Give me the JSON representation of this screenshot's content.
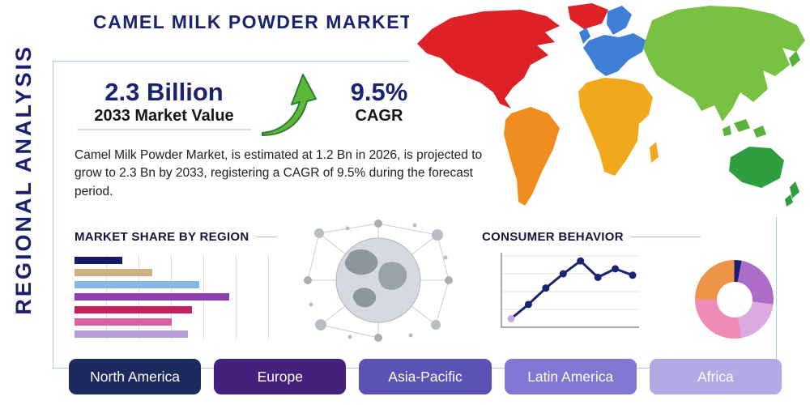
{
  "page": {
    "title": "CAMEL MILK POWDER MARKET",
    "side_label": "REGIONAL ANALYSIS"
  },
  "stats": {
    "market_value": "2.3 Billion",
    "market_value_caption": "2033 Market Value",
    "cagr_value": "9.5%",
    "cagr_caption": "CAGR"
  },
  "description": "Camel Milk Powder Market, is estimated at 1.2 Bn in 2026, is projected to grow to 2.3 Bn by 2033, registering a CAGR of 9.5% during the forecast period.",
  "sections": {
    "market_share": "MARKET SHARE BY REGION",
    "consumer_behavior": "CONSUMER BEHAVIOR"
  },
  "regions": [
    {
      "label": "North America",
      "color": "#1d2a5e"
    },
    {
      "label": "Europe",
      "color": "#45217e"
    },
    {
      "label": "Asia-Pacific",
      "color": "#5a52b5"
    },
    {
      "label": "Latin America",
      "color": "#8176d1"
    },
    {
      "label": "Africa",
      "color": "#b3a9e4"
    }
  ],
  "map": {
    "colors": {
      "north-america": "#de2127",
      "greenland": "#de2127",
      "south-america": "#f18c1f",
      "europe": "#3f80d6",
      "uk": "#3f80d6",
      "africa": "#f2a81d",
      "madagascar": "#f2a81d",
      "asia": "#78c143",
      "islands": "#5bb13d",
      "australia": "#2f9e41",
      "new-zealand": "#2f9e41"
    }
  },
  "chart_data": [
    {
      "type": "bar",
      "title": "MARKET SHARE BY REGION",
      "orientation": "horizontal",
      "values": [
        24,
        39,
        63,
        78,
        59,
        49,
        57
      ],
      "colors": [
        "#141b66",
        "#c9b27f",
        "#86b7e2",
        "#8e3fae",
        "#c2215e",
        "#de5f9f",
        "#b49bd9"
      ],
      "xlim": [
        0,
        100
      ],
      "grid": true
    },
    {
      "type": "line",
      "title": "CONSUMER BEHAVIOR",
      "x": [
        1,
        2,
        3,
        4,
        5,
        6,
        7,
        8
      ],
      "values": [
        12,
        32,
        55,
        75,
        93,
        70,
        82,
        73
      ],
      "ylim": [
        0,
        100
      ],
      "line_color": "#1a2370",
      "marker_color": "#1a2370",
      "first_marker_color": "#c3a8e6",
      "grid": true
    },
    {
      "type": "pie",
      "donut": true,
      "segments": [
        {
          "name": "navy",
          "value": 3,
          "color": "#1a1f6e"
        },
        {
          "name": "purple",
          "value": 24,
          "color": "#ad6cca"
        },
        {
          "name": "lavender",
          "value": 20,
          "color": "#d9a9df"
        },
        {
          "name": "pink",
          "value": 28,
          "color": "#ef8cb5"
        },
        {
          "name": "orange",
          "value": 25,
          "color": "#ee9447"
        }
      ]
    }
  ]
}
